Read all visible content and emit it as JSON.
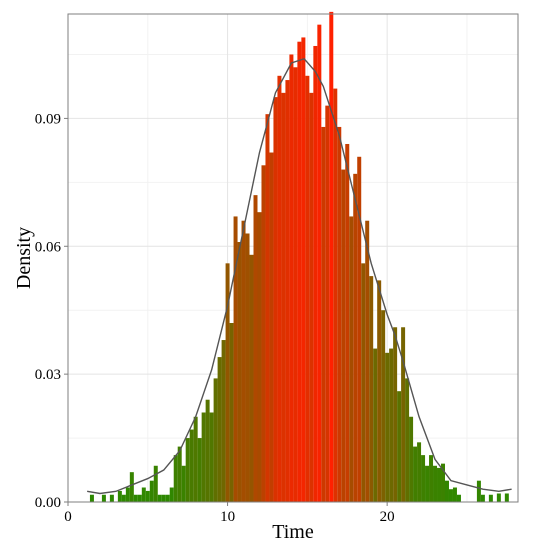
{
  "chart_data": {
    "type": "bar",
    "subtype": "histogram-with-density",
    "title": "",
    "xlabel": "Time",
    "ylabel": "Density",
    "xlim": [
      0,
      28.2
    ],
    "ylim": [
      0,
      0.1145
    ],
    "x_ticks": [
      0,
      10,
      20
    ],
    "x_tick_labels": [
      "0",
      "10",
      "20"
    ],
    "y_ticks": [
      0.0,
      0.03,
      0.06,
      0.09
    ],
    "y_tick_labels": [
      "0.00",
      "0.03",
      "0.06",
      "0.09"
    ],
    "grid": true,
    "legend": "none",
    "fill_gradient": {
      "low": "#2a8a00",
      "high": "#ff2000"
    },
    "bin_width": 0.25,
    "bins": [
      {
        "x": 1.5,
        "y": 0.0017
      },
      {
        "x": 2.25,
        "y": 0.0017
      },
      {
        "x": 2.75,
        "y": 0.0017
      },
      {
        "x": 3.25,
        "y": 0.0026
      },
      {
        "x": 3.5,
        "y": 0.0017
      },
      {
        "x": 3.75,
        "y": 0.0034
      },
      {
        "x": 4.0,
        "y": 0.007
      },
      {
        "x": 4.25,
        "y": 0.0017
      },
      {
        "x": 4.5,
        "y": 0.0017
      },
      {
        "x": 4.75,
        "y": 0.0034
      },
      {
        "x": 5.0,
        "y": 0.0026
      },
      {
        "x": 5.25,
        "y": 0.005
      },
      {
        "x": 5.5,
        "y": 0.0085
      },
      {
        "x": 5.75,
        "y": 0.0017
      },
      {
        "x": 6.0,
        "y": 0.0017
      },
      {
        "x": 6.25,
        "y": 0.0017
      },
      {
        "x": 6.5,
        "y": 0.0034
      },
      {
        "x": 6.75,
        "y": 0.011
      },
      {
        "x": 7.0,
        "y": 0.013
      },
      {
        "x": 7.25,
        "y": 0.0085
      },
      {
        "x": 7.5,
        "y": 0.015
      },
      {
        "x": 7.75,
        "y": 0.017
      },
      {
        "x": 8.0,
        "y": 0.02
      },
      {
        "x": 8.25,
        "y": 0.015
      },
      {
        "x": 8.5,
        "y": 0.021
      },
      {
        "x": 8.75,
        "y": 0.024
      },
      {
        "x": 9.0,
        "y": 0.021
      },
      {
        "x": 9.25,
        "y": 0.029
      },
      {
        "x": 9.5,
        "y": 0.034
      },
      {
        "x": 9.75,
        "y": 0.038
      },
      {
        "x": 10.0,
        "y": 0.056
      },
      {
        "x": 10.25,
        "y": 0.042
      },
      {
        "x": 10.5,
        "y": 0.067
      },
      {
        "x": 10.75,
        "y": 0.061
      },
      {
        "x": 11.0,
        "y": 0.066
      },
      {
        "x": 11.25,
        "y": 0.063
      },
      {
        "x": 11.5,
        "y": 0.058
      },
      {
        "x": 11.75,
        "y": 0.072
      },
      {
        "x": 12.0,
        "y": 0.068
      },
      {
        "x": 12.25,
        "y": 0.079
      },
      {
        "x": 12.5,
        "y": 0.091
      },
      {
        "x": 12.75,
        "y": 0.082
      },
      {
        "x": 13.0,
        "y": 0.095
      },
      {
        "x": 13.25,
        "y": 0.1
      },
      {
        "x": 13.5,
        "y": 0.096
      },
      {
        "x": 13.75,
        "y": 0.099
      },
      {
        "x": 14.0,
        "y": 0.105
      },
      {
        "x": 14.25,
        "y": 0.102
      },
      {
        "x": 14.5,
        "y": 0.108
      },
      {
        "x": 14.75,
        "y": 0.109
      },
      {
        "x": 15.0,
        "y": 0.1
      },
      {
        "x": 15.25,
        "y": 0.096
      },
      {
        "x": 15.5,
        "y": 0.107
      },
      {
        "x": 15.75,
        "y": 0.112
      },
      {
        "x": 16.0,
        "y": 0.088
      },
      {
        "x": 16.25,
        "y": 0.093
      },
      {
        "x": 16.5,
        "y": 0.115
      },
      {
        "x": 16.75,
        "y": 0.097
      },
      {
        "x": 17.0,
        "y": 0.088
      },
      {
        "x": 17.25,
        "y": 0.078
      },
      {
        "x": 17.5,
        "y": 0.084
      },
      {
        "x": 17.75,
        "y": 0.067
      },
      {
        "x": 18.0,
        "y": 0.077
      },
      {
        "x": 18.25,
        "y": 0.081
      },
      {
        "x": 18.5,
        "y": 0.056
      },
      {
        "x": 18.75,
        "y": 0.066
      },
      {
        "x": 19.0,
        "y": 0.053
      },
      {
        "x": 19.25,
        "y": 0.036
      },
      {
        "x": 19.5,
        "y": 0.052
      },
      {
        "x": 19.75,
        "y": 0.045
      },
      {
        "x": 20.0,
        "y": 0.035
      },
      {
        "x": 20.25,
        "y": 0.036
      },
      {
        "x": 20.5,
        "y": 0.041
      },
      {
        "x": 20.75,
        "y": 0.026
      },
      {
        "x": 21.0,
        "y": 0.041
      },
      {
        "x": 21.25,
        "y": 0.029
      },
      {
        "x": 21.5,
        "y": 0.02
      },
      {
        "x": 21.75,
        "y": 0.013
      },
      {
        "x": 22.0,
        "y": 0.014
      },
      {
        "x": 22.25,
        "y": 0.011
      },
      {
        "x": 22.5,
        "y": 0.0085
      },
      {
        "x": 22.75,
        "y": 0.011
      },
      {
        "x": 23.0,
        "y": 0.0085
      },
      {
        "x": 23.25,
        "y": 0.008
      },
      {
        "x": 23.5,
        "y": 0.009
      },
      {
        "x": 23.75,
        "y": 0.005
      },
      {
        "x": 24.0,
        "y": 0.003
      },
      {
        "x": 24.25,
        "y": 0.0034
      },
      {
        "x": 24.5,
        "y": 0.0017
      },
      {
        "x": 25.75,
        "y": 0.005
      },
      {
        "x": 26.0,
        "y": 0.0017
      },
      {
        "x": 26.5,
        "y": 0.0017
      },
      {
        "x": 27.0,
        "y": 0.002
      },
      {
        "x": 27.5,
        "y": 0.002
      }
    ],
    "density_curve": {
      "color": "#555555",
      "points": [
        [
          1.2,
          0.0025
        ],
        [
          2.0,
          0.002
        ],
        [
          3.0,
          0.0025
        ],
        [
          4.0,
          0.004
        ],
        [
          5.0,
          0.0055
        ],
        [
          6.0,
          0.0075
        ],
        [
          7.0,
          0.012
        ],
        [
          8.0,
          0.02
        ],
        [
          9.0,
          0.031
        ],
        [
          10.0,
          0.046
        ],
        [
          11.0,
          0.064
        ],
        [
          12.0,
          0.082
        ],
        [
          13.0,
          0.096
        ],
        [
          14.0,
          0.103
        ],
        [
          14.8,
          0.104
        ],
        [
          15.5,
          0.101
        ],
        [
          16.0,
          0.0975
        ],
        [
          17.0,
          0.086
        ],
        [
          18.0,
          0.071
        ],
        [
          19.0,
          0.056
        ],
        [
          20.0,
          0.044
        ],
        [
          20.5,
          0.039
        ],
        [
          21.0,
          0.033
        ],
        [
          22.0,
          0.02
        ],
        [
          23.0,
          0.01
        ],
        [
          24.0,
          0.005
        ],
        [
          25.0,
          0.004
        ],
        [
          26.0,
          0.003
        ],
        [
          27.0,
          0.0025
        ],
        [
          27.8,
          0.003
        ]
      ]
    }
  }
}
